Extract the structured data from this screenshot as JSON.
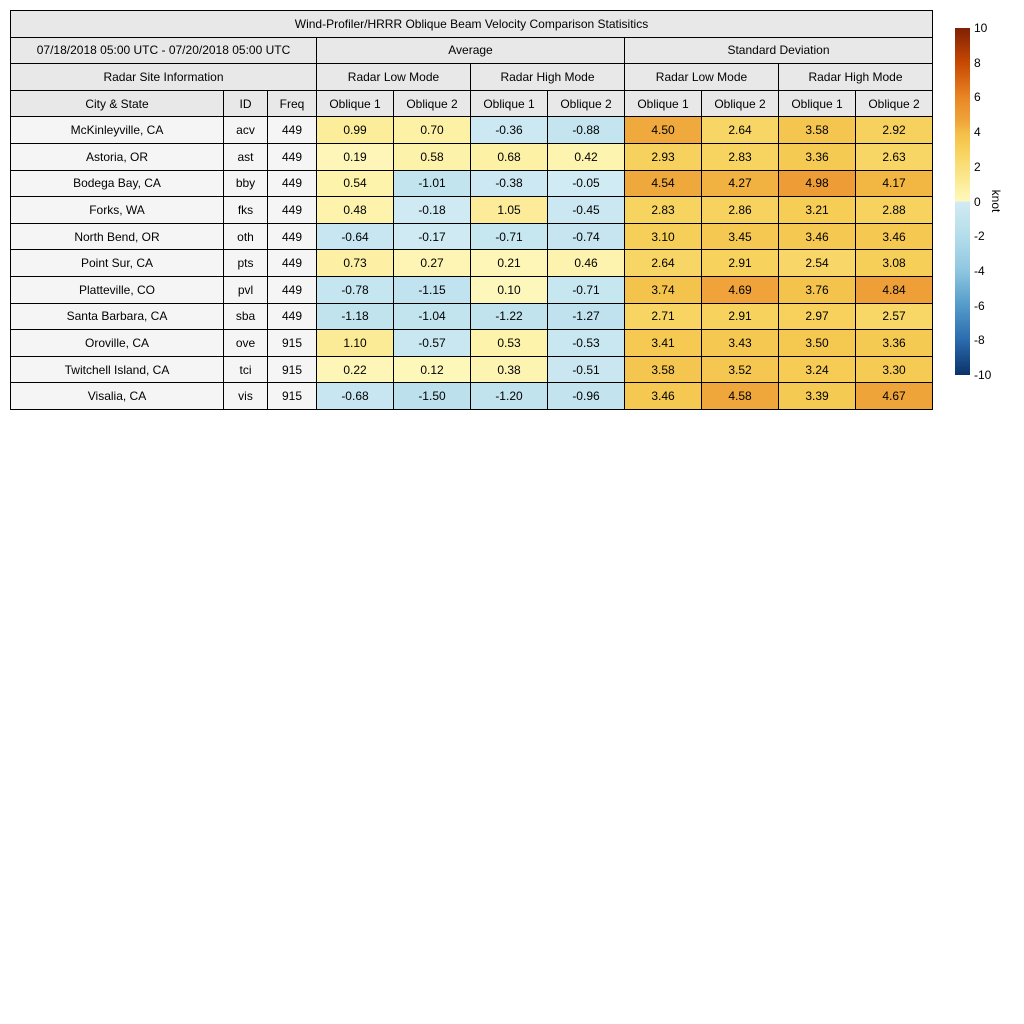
{
  "table_headers": {
    "title": "Wind-Profiler/HRRR Oblique Beam Velocity Comparison Statisitics",
    "date_range": "07/18/2018 05:00 UTC - 07/20/2018 05:00 UTC",
    "site_info": "Radar Site Information",
    "average": "Average",
    "std_dev": "Standard Deviation",
    "low_mode": "Radar Low Mode",
    "high_mode": "Radar High Mode",
    "city": "City & State",
    "id": "ID",
    "freq": "Freq",
    "oblique1": "Oblique 1",
    "oblique2": "Oblique 2"
  },
  "chart_data": {
    "type": "table",
    "title": "Wind-Profiler/HRRR Oblique Beam Velocity Comparison Statisitics",
    "date_range": "07/18/2018 05:00 UTC - 07/20/2018 05:00 UTC",
    "column_groups": [
      "Average",
      "Standard Deviation"
    ],
    "sub_groups": [
      "Radar Low Mode",
      "Radar High Mode"
    ],
    "value_column_order": [
      "Avg Low Oblique 1",
      "Avg Low Oblique 2",
      "Avg High Oblique 1",
      "Avg High Oblique 2",
      "Std Low Oblique 1",
      "Std Low Oblique 2",
      "Std High Oblique 1",
      "Std High Oblique 2"
    ],
    "colorbar": {
      "label": "knot",
      "min": -10,
      "max": 10,
      "ticks": [
        10,
        8,
        6,
        4,
        2,
        0,
        -2,
        -4,
        -6,
        -8,
        -10
      ]
    },
    "rows": [
      {
        "city": "McKinleyville, CA",
        "id": "acv",
        "freq": "449",
        "values": [
          0.99,
          0.7,
          -0.36,
          -0.88,
          4.5,
          2.64,
          3.58,
          2.92
        ]
      },
      {
        "city": "Astoria, OR",
        "id": "ast",
        "freq": "449",
        "values": [
          0.19,
          0.58,
          0.68,
          0.42,
          2.93,
          2.83,
          3.36,
          2.63
        ]
      },
      {
        "city": "Bodega Bay, CA",
        "id": "bby",
        "freq": "449",
        "values": [
          0.54,
          -1.01,
          -0.38,
          -0.05,
          4.54,
          4.27,
          4.98,
          4.17
        ]
      },
      {
        "city": "Forks, WA",
        "id": "fks",
        "freq": "449",
        "values": [
          0.48,
          -0.18,
          1.05,
          -0.45,
          2.83,
          2.86,
          3.21,
          2.88
        ]
      },
      {
        "city": "North Bend, OR",
        "id": "oth",
        "freq": "449",
        "values": [
          -0.64,
          -0.17,
          -0.71,
          -0.74,
          3.1,
          3.45,
          3.46,
          3.46
        ]
      },
      {
        "city": "Point Sur, CA",
        "id": "pts",
        "freq": "449",
        "values": [
          0.73,
          0.27,
          0.21,
          0.46,
          2.64,
          2.91,
          2.54,
          3.08
        ]
      },
      {
        "city": "Platteville, CO",
        "id": "pvl",
        "freq": "449",
        "values": [
          -0.78,
          -1.15,
          0.1,
          -0.71,
          3.74,
          4.69,
          3.76,
          4.84
        ]
      },
      {
        "city": "Santa Barbara, CA",
        "id": "sba",
        "freq": "449",
        "values": [
          -1.18,
          -1.04,
          -1.22,
          -1.27,
          2.71,
          2.91,
          2.97,
          2.57
        ]
      },
      {
        "city": "Oroville, CA",
        "id": "ove",
        "freq": "915",
        "values": [
          1.1,
          -0.57,
          0.53,
          -0.53,
          3.41,
          3.43,
          3.5,
          3.36
        ]
      },
      {
        "city": "Twitchell Island, CA",
        "id": "tci",
        "freq": "915",
        "values": [
          0.22,
          0.12,
          0.38,
          -0.51,
          3.58,
          3.52,
          3.24,
          3.3
        ]
      },
      {
        "city": "Visalia, CA",
        "id": "vis",
        "freq": "915",
        "values": [
          -0.68,
          -1.5,
          -1.2,
          -0.96,
          3.46,
          4.58,
          3.39,
          4.67
        ]
      }
    ]
  },
  "colors": {
    "header_bg": "#E8E8E8",
    "label_cell_bg": "#F5F5F5",
    "border": "#000000",
    "cell_stops": [
      [
        -10,
        "#0B3269"
      ],
      [
        -8,
        "#2A6BAD"
      ],
      [
        -6,
        "#549BCA"
      ],
      [
        -4,
        "#8EC6E0"
      ],
      [
        -2.5,
        "#ABD8E9"
      ],
      [
        -1.5,
        "#BCE1ED"
      ],
      [
        -0.8,
        "#C5E5F0"
      ],
      [
        -0.01,
        "#D2EBF4"
      ],
      [
        0.01,
        "#FEF8BE"
      ],
      [
        0.6,
        "#FDF2A9"
      ],
      [
        1.2,
        "#FBEA93"
      ],
      [
        2,
        "#FADF7A"
      ],
      [
        2.7,
        "#F8D563"
      ],
      [
        3.2,
        "#F6CD55"
      ],
      [
        3.8,
        "#F4C24B"
      ],
      [
        4.1,
        "#F2B945"
      ],
      [
        4.45,
        "#F0AB3D"
      ],
      [
        4.8,
        "#EEA038"
      ],
      [
        5.2,
        "#EC9833"
      ],
      [
        6,
        "#EA8524"
      ],
      [
        8,
        "#C74802"
      ],
      [
        10,
        "#7F2005"
      ]
    ]
  }
}
